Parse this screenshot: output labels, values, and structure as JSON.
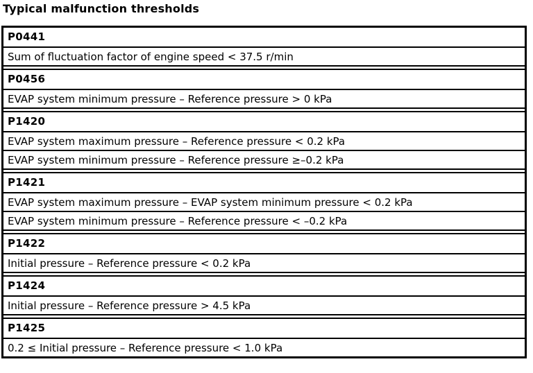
{
  "title": "Typical malfunction thresholds",
  "table": {
    "sections": [
      {
        "code": "P0441",
        "thresholds": [
          "Sum of fluctuation factor of engine speed < 37.5 r/min"
        ]
      },
      {
        "code": "P0456",
        "thresholds": [
          "EVAP system minimum pressure – Reference pressure > 0 kPa"
        ]
      },
      {
        "code": "P1420",
        "thresholds": [
          "EVAP system maximum pressure – Reference pressure < 0.2 kPa",
          "EVAP system minimum pressure – Reference pressure ≥–0.2 kPa"
        ]
      },
      {
        "code": "P1421",
        "thresholds": [
          "EVAP system maximum pressure – EVAP system minimum pressure < 0.2 kPa",
          "EVAP system minimum pressure – Reference pressure < –0.2 kPa"
        ]
      },
      {
        "code": "P1422",
        "thresholds": [
          "Initial pressure – Reference pressure < 0.2 kPa"
        ]
      },
      {
        "code": "P1424",
        "thresholds": [
          "Initial pressure – Reference pressure > 4.5 kPa"
        ]
      },
      {
        "code": "P1425",
        "thresholds": [
          "0.2 ≤ Initial pressure – Reference pressure < 1.0 kPa"
        ]
      }
    ]
  },
  "colors": {
    "border": "#000000",
    "background": "#ffffff",
    "text": "#000000"
  }
}
